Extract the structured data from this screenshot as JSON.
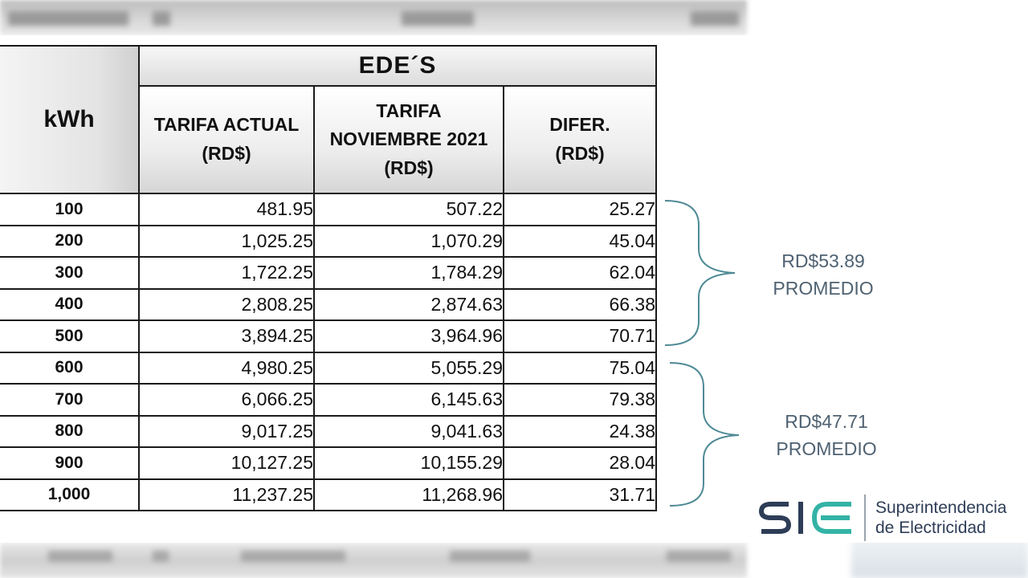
{
  "table": {
    "group_header": "EDE´S",
    "row_header": "kWh",
    "columns": [
      [
        "TARIFA ACTUAL",
        "(RD$)"
      ],
      [
        "TARIFA",
        "NOVIEMBRE 2021",
        "(RD$)"
      ],
      [
        "DIFER.",
        "(RD$)"
      ]
    ],
    "rows": [
      {
        "kwh": "100",
        "actual": "481.95",
        "nov2021": "507.22",
        "diff": "25.27"
      },
      {
        "kwh": "200",
        "actual": "1,025.25",
        "nov2021": "1,070.29",
        "diff": "45.04"
      },
      {
        "kwh": "300",
        "actual": "1,722.25",
        "nov2021": "1,784.29",
        "diff": "62.04"
      },
      {
        "kwh": "400",
        "actual": "2,808.25",
        "nov2021": "2,874.63",
        "diff": "66.38"
      },
      {
        "kwh": "500",
        "actual": "3,894.25",
        "nov2021": "3,964.96",
        "diff": "70.71"
      },
      {
        "kwh": "600",
        "actual": "4,980.25",
        "nov2021": "5,055.29",
        "diff": "75.04"
      },
      {
        "kwh": "700",
        "actual": "6,066.25",
        "nov2021": "6,145.63",
        "diff": "79.38"
      },
      {
        "kwh": "800",
        "actual": "9,017.25",
        "nov2021": "9,041.63",
        "diff": "24.38"
      },
      {
        "kwh": "900",
        "actual": "10,127.25",
        "nov2021": "10,155.29",
        "diff": "28.04"
      },
      {
        "kwh": "1,000",
        "actual": "11,237.25",
        "nov2021": "11,268.96",
        "diff": "31.71"
      }
    ]
  },
  "annotations": [
    {
      "value": "RD$53.89",
      "label": "PROMEDIO"
    },
    {
      "value": "RD$47.71",
      "label": "PROMEDIO"
    }
  ],
  "logo": {
    "mark": "SIE",
    "line1": "Superintendencia",
    "line2": "de Electricidad"
  },
  "colors": {
    "brace": "#4f8a96",
    "annotation_text": "#4f6272",
    "logo_dark": "#2e3d57",
    "logo_accent": "#33b3a6"
  }
}
